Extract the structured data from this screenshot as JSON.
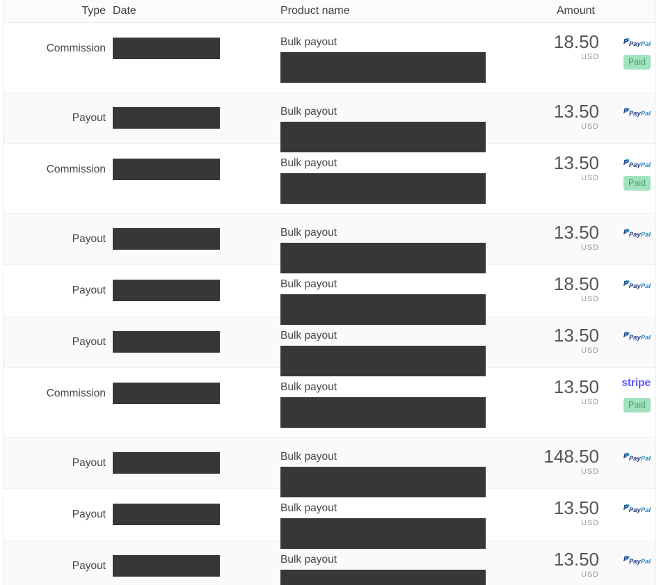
{
  "header": {
    "type": "Type",
    "date": "Date",
    "product": "Product name",
    "amount": "Amount"
  },
  "rows": [
    {
      "type": "Commission",
      "product": "Bulk payout",
      "amount": "18.50",
      "currency": "USD",
      "processor": "PayPal",
      "status": "Paid"
    },
    {
      "type": "Payout",
      "product": "Bulk payout",
      "amount": "13.50",
      "currency": "USD",
      "processor": "PayPal",
      "status": ""
    },
    {
      "type": "Commission",
      "product": "Bulk payout",
      "amount": "13.50",
      "currency": "USD",
      "processor": "PayPal",
      "status": "Paid"
    },
    {
      "type": "Payout",
      "product": "Bulk payout",
      "amount": "13.50",
      "currency": "USD",
      "processor": "PayPal",
      "status": ""
    },
    {
      "type": "Payout",
      "product": "Bulk payout",
      "amount": "18.50",
      "currency": "USD",
      "processor": "PayPal",
      "status": ""
    },
    {
      "type": "Payout",
      "product": "Bulk payout",
      "amount": "13.50",
      "currency": "USD",
      "processor": "PayPal",
      "status": ""
    },
    {
      "type": "Commission",
      "product": "Bulk payout",
      "amount": "13.50",
      "currency": "USD",
      "processor": "Stripe",
      "status": "Paid"
    },
    {
      "type": "Payout",
      "product": "Bulk payout",
      "amount": "148.50",
      "currency": "USD",
      "processor": "PayPal",
      "status": ""
    },
    {
      "type": "Payout",
      "product": "Bulk payout",
      "amount": "13.50",
      "currency": "USD",
      "processor": "PayPal",
      "status": ""
    },
    {
      "type": "Payout",
      "product": "Bulk payout",
      "amount": "13.50",
      "currency": "USD",
      "processor": "PayPal",
      "status": ""
    }
  ],
  "logos": {
    "paypal_icon": "P",
    "paypal_pay": "Pay",
    "paypal_pal": "Pal",
    "stripe": "stripe"
  },
  "colors": {
    "paypal_navy": "#253b80",
    "paypal_blue": "#2790c3",
    "stripe_purple": "#635bff",
    "paid_badge_bg": "#a2e3bf",
    "paid_badge_text": "#4f9a72",
    "redaction_block": "#373737",
    "row_alt_bg": "#fafafb"
  }
}
